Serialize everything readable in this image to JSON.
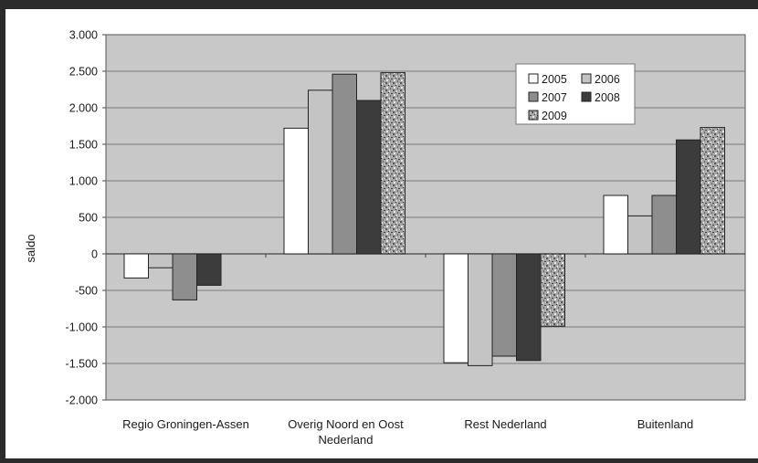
{
  "chart_data": {
    "type": "bar",
    "title": "",
    "xlabel": "",
    "ylabel": "saldo",
    "ylim": [
      -2000,
      3000
    ],
    "yticks": [
      3000,
      2500,
      2000,
      1500,
      1000,
      500,
      0,
      -500,
      -1000,
      -1500,
      -2000
    ],
    "ytick_labels": [
      "3.000",
      "2.500",
      "2.000",
      "1.500",
      "1.000",
      "500",
      "0",
      "-500",
      "-1.000",
      "-1.500",
      "-2.000"
    ],
    "grid": true,
    "legend_position": "top-right",
    "categories": [
      [
        "Regio Groningen-Assen"
      ],
      [
        "Overig Noord en Oost",
        "Nederland"
      ],
      [
        "Rest Nederland"
      ],
      [
        "Buitenland"
      ]
    ],
    "series": [
      {
        "name": "2005",
        "values": [
          -330,
          1720,
          -1490,
          800
        ],
        "color": "#ffffff",
        "pattern": "solid"
      },
      {
        "name": "2006",
        "values": [
          -190,
          2240,
          -1530,
          520
        ],
        "color": "#c4c4c4",
        "pattern": "solid"
      },
      {
        "name": "2007",
        "values": [
          -630,
          2460,
          -1400,
          800
        ],
        "color": "#8e8e8e",
        "pattern": "solid"
      },
      {
        "name": "2008",
        "values": [
          -430,
          2100,
          -1460,
          1560
        ],
        "color": "#3c3c3c",
        "pattern": "solid"
      },
      {
        "name": "2009",
        "values": [
          null,
          2480,
          -990,
          1730
        ],
        "color": "#a8a8a8",
        "pattern": "speckle"
      }
    ]
  }
}
